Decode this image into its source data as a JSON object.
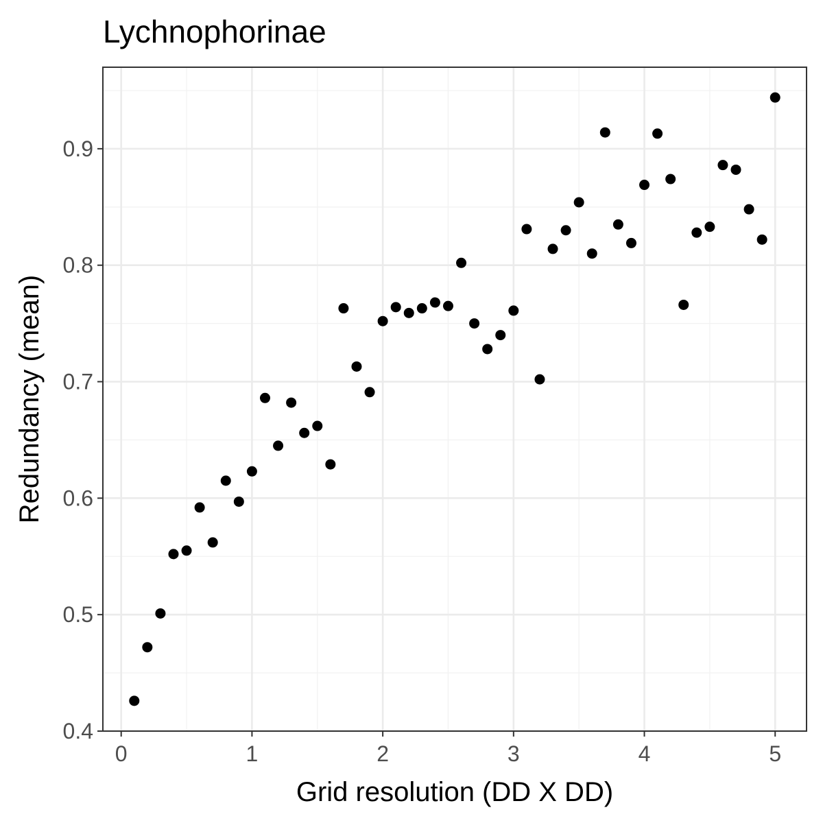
{
  "chart_data": {
    "type": "scatter",
    "title": "Lychnophorinae",
    "xlabel": "Grid resolution (DD X DD)",
    "ylabel": "Redundancy (mean)",
    "xlim": [
      -0.14,
      5.24
    ],
    "ylim": [
      0.4,
      0.97
    ],
    "xticks": [
      0,
      1,
      2,
      3,
      4,
      5
    ],
    "yticks": [
      0.4,
      0.5,
      0.6,
      0.7,
      0.8,
      0.9
    ],
    "xtick_labels": [
      "0",
      "1",
      "2",
      "3",
      "4",
      "5"
    ],
    "ytick_labels": [
      "0.4",
      "0.5",
      "0.6",
      "0.7",
      "0.8",
      "0.9"
    ],
    "grid": true,
    "legend": "none",
    "point_color": "#000000",
    "x": [
      0.1,
      0.2,
      0.3,
      0.4,
      0.5,
      0.6,
      0.7,
      0.8,
      0.9,
      1.0,
      1.1,
      1.2,
      1.3,
      1.4,
      1.5,
      1.6,
      1.7,
      1.8,
      1.9,
      2.0,
      2.1,
      2.2,
      2.3,
      2.4,
      2.5,
      2.6,
      2.7,
      2.8,
      2.9,
      3.0,
      3.1,
      3.2,
      3.3,
      3.4,
      3.5,
      3.6,
      3.7,
      3.8,
      3.9,
      4.0,
      4.1,
      4.2,
      4.3,
      4.4,
      4.5,
      4.6,
      4.7,
      4.8,
      4.9,
      5.0
    ],
    "y": [
      0.426,
      0.472,
      0.501,
      0.552,
      0.555,
      0.592,
      0.562,
      0.615,
      0.597,
      0.623,
      0.686,
      0.645,
      0.682,
      0.656,
      0.662,
      0.629,
      0.763,
      0.713,
      0.691,
      0.752,
      0.764,
      0.759,
      0.763,
      0.768,
      0.765,
      0.802,
      0.75,
      0.728,
      0.74,
      0.761,
      0.831,
      0.702,
      0.814,
      0.83,
      0.854,
      0.81,
      0.914,
      0.835,
      0.819,
      0.869,
      0.913,
      0.874,
      0.766,
      0.828,
      0.833,
      0.886,
      0.882,
      0.848,
      0.822,
      0.944
    ]
  }
}
